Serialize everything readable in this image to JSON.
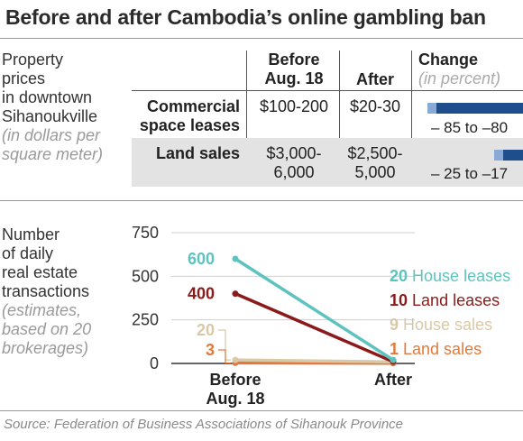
{
  "title": "Before and after Cambodia’s online gambling ban",
  "prices_label": {
    "lines": [
      "Property",
      "prices",
      "in downtown",
      "Sihanoukville"
    ],
    "note": [
      "(in dollars per",
      "square meter)"
    ]
  },
  "table": {
    "headers": {
      "before": [
        "Before",
        "Aug. 18"
      ],
      "after": "After",
      "change": "Change",
      "change_unit": "(in percent)"
    },
    "rows": [
      {
        "label": [
          "Commercial",
          "space leases"
        ],
        "before": "$100-200",
        "after": "$20-30",
        "change_text": "– 85 to –80",
        "change_min": -85,
        "change_max": -80
      },
      {
        "label": [
          "Land sales"
        ],
        "before": [
          "$3,000-",
          "6,000"
        ],
        "after": [
          "$2,500-",
          "5,000"
        ],
        "change_text": "– 25 to –17",
        "change_min": -25,
        "change_max": -17
      }
    ],
    "colors": {
      "bar_dark": "#1f4e8c",
      "bar_light": "#8aaad6",
      "shade": "#e3e3e3"
    }
  },
  "transactions_label": {
    "lines": [
      "Number",
      "of daily",
      "real estate",
      "transactions"
    ],
    "note": [
      "(estimates,",
      "based on 20",
      "brokerages)"
    ]
  },
  "chart_data": {
    "type": "line",
    "categories": [
      "Before Aug. 18",
      "After"
    ],
    "category_lines": [
      [
        "Before",
        "Aug. 18"
      ],
      [
        "After"
      ]
    ],
    "yticks": [
      0,
      250,
      500,
      750
    ],
    "ylim": [
      0,
      750
    ],
    "series": [
      {
        "name": "House leases",
        "values": [
          600,
          20
        ],
        "start_label": "600",
        "end_label": "20",
        "color": "#5cc3bf"
      },
      {
        "name": "Land leases",
        "values": [
          400,
          10
        ],
        "start_label": "400",
        "end_label": "10",
        "color": "#8b1a1a"
      },
      {
        "name": "House sales",
        "values": [
          20,
          9
        ],
        "start_label": "20",
        "end_label": "9",
        "color": "#d9c9a8"
      },
      {
        "name": "Land sales",
        "values": [
          3,
          1
        ],
        "start_label": "3",
        "end_label": "1",
        "color": "#e07a3c"
      }
    ]
  },
  "source": "Source: Federation of Business Associations of Sihanouk Province"
}
